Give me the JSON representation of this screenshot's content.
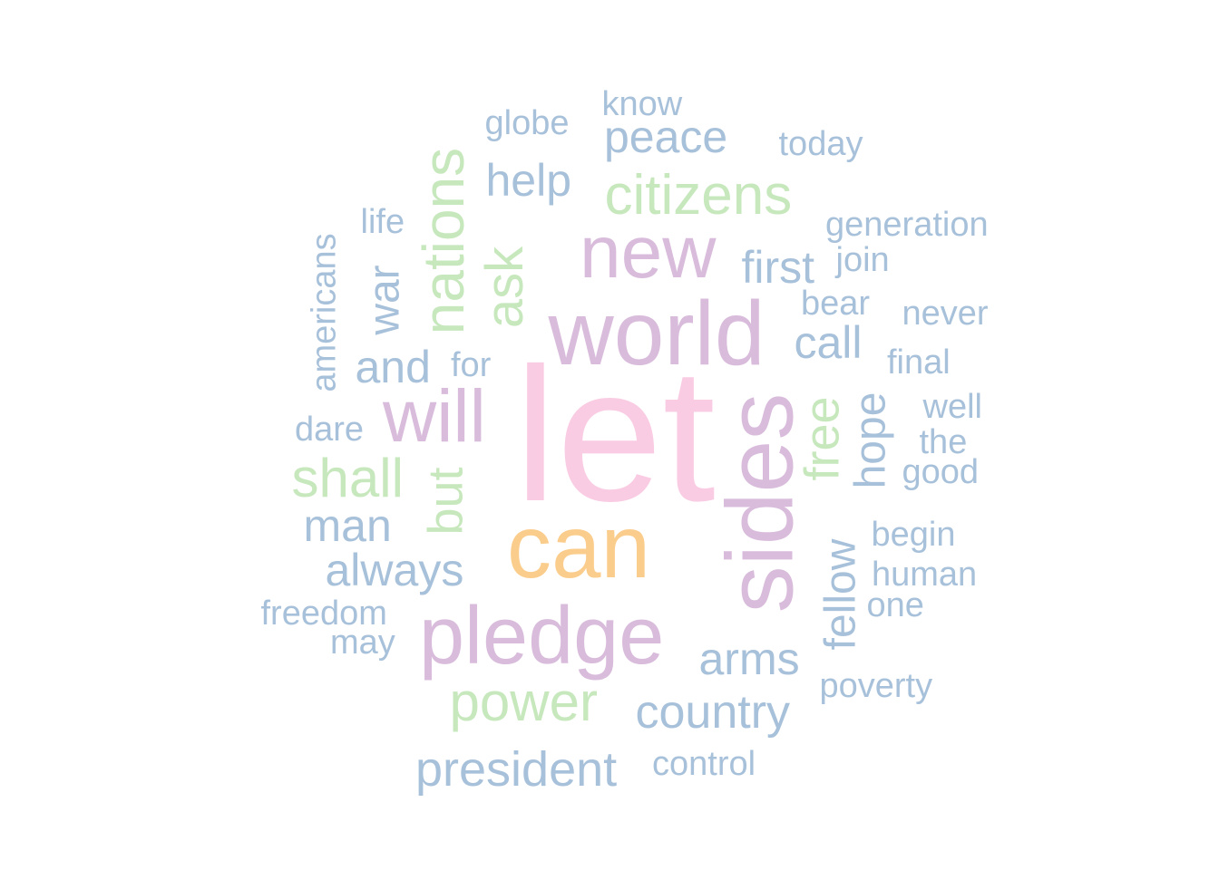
{
  "palette": {
    "blue": "#a8c1da",
    "pink": "#f9cce3",
    "purple": "#d9bcdc",
    "green": "#c7e8bd",
    "orange": "#fbcd8c"
  },
  "words": [
    {
      "text": "let",
      "frequency": 12,
      "color": "pink",
      "rotated": false
    },
    {
      "text": "world",
      "frequency": 8,
      "color": "purple",
      "rotated": false
    },
    {
      "text": "sides",
      "frequency": 8,
      "color": "purple",
      "rotated": true
    },
    {
      "text": "can",
      "frequency": 8,
      "color": "orange",
      "rotated": false
    },
    {
      "text": "pledge",
      "frequency": 7,
      "color": "purple",
      "rotated": false
    },
    {
      "text": "new",
      "frequency": 7,
      "color": "purple",
      "rotated": false
    },
    {
      "text": "will",
      "frequency": 7,
      "color": "purple",
      "rotated": false
    },
    {
      "text": "nations",
      "frequency": 5,
      "color": "green",
      "rotated": true
    },
    {
      "text": "citizens",
      "frequency": 5,
      "color": "green",
      "rotated": false
    },
    {
      "text": "power",
      "frequency": 5,
      "color": "green",
      "rotated": false
    },
    {
      "text": "shall",
      "frequency": 5,
      "color": "green",
      "rotated": false
    },
    {
      "text": "ask",
      "frequency": 5,
      "color": "green",
      "rotated": true
    },
    {
      "text": "free",
      "frequency": 5,
      "color": "green",
      "rotated": true
    },
    {
      "text": "but",
      "frequency": 5,
      "color": "green",
      "rotated": true
    },
    {
      "text": "president",
      "frequency": 4,
      "color": "blue",
      "rotated": false
    },
    {
      "text": "country",
      "frequency": 4,
      "color": "blue",
      "rotated": false
    },
    {
      "text": "always",
      "frequency": 4,
      "color": "blue",
      "rotated": false
    },
    {
      "text": "arms",
      "frequency": 4,
      "color": "blue",
      "rotated": false
    },
    {
      "text": "man",
      "frequency": 4,
      "color": "blue",
      "rotated": false
    },
    {
      "text": "peace",
      "frequency": 4,
      "color": "blue",
      "rotated": false
    },
    {
      "text": "help",
      "frequency": 4,
      "color": "blue",
      "rotated": false
    },
    {
      "text": "first",
      "frequency": 4,
      "color": "blue",
      "rotated": false
    },
    {
      "text": "call",
      "frequency": 4,
      "color": "blue",
      "rotated": false
    },
    {
      "text": "and",
      "frequency": 4,
      "color": "blue",
      "rotated": false
    },
    {
      "text": "war",
      "frequency": 4,
      "color": "blue",
      "rotated": true
    },
    {
      "text": "fellow",
      "frequency": 4,
      "color": "blue",
      "rotated": true
    },
    {
      "text": "hope",
      "frequency": 4,
      "color": "blue",
      "rotated": true
    },
    {
      "text": "globe",
      "frequency": 3,
      "color": "blue",
      "rotated": false
    },
    {
      "text": "know",
      "frequency": 3,
      "color": "blue",
      "rotated": false
    },
    {
      "text": "today",
      "frequency": 3,
      "color": "blue",
      "rotated": false
    },
    {
      "text": "generation",
      "frequency": 3,
      "color": "blue",
      "rotated": false
    },
    {
      "text": "life",
      "frequency": 3,
      "color": "blue",
      "rotated": false
    },
    {
      "text": "join",
      "frequency": 3,
      "color": "blue",
      "rotated": false
    },
    {
      "text": "bear",
      "frequency": 3,
      "color": "blue",
      "rotated": false
    },
    {
      "text": "never",
      "frequency": 3,
      "color": "blue",
      "rotated": false
    },
    {
      "text": "final",
      "frequency": 3,
      "color": "blue",
      "rotated": false
    },
    {
      "text": "for",
      "frequency": 3,
      "color": "blue",
      "rotated": false
    },
    {
      "text": "well",
      "frequency": 3,
      "color": "blue",
      "rotated": false
    },
    {
      "text": "dare",
      "frequency": 3,
      "color": "blue",
      "rotated": false
    },
    {
      "text": "the",
      "frequency": 3,
      "color": "blue",
      "rotated": false
    },
    {
      "text": "good",
      "frequency": 3,
      "color": "blue",
      "rotated": false
    },
    {
      "text": "begin",
      "frequency": 3,
      "color": "blue",
      "rotated": false
    },
    {
      "text": "human",
      "frequency": 3,
      "color": "blue",
      "rotated": false
    },
    {
      "text": "one",
      "frequency": 3,
      "color": "blue",
      "rotated": false
    },
    {
      "text": "freedom",
      "frequency": 3,
      "color": "blue",
      "rotated": false
    },
    {
      "text": "may",
      "frequency": 3,
      "color": "blue",
      "rotated": false
    },
    {
      "text": "poverty",
      "frequency": 3,
      "color": "blue",
      "rotated": false
    },
    {
      "text": "control",
      "frequency": 3,
      "color": "blue",
      "rotated": false
    },
    {
      "text": "americans",
      "frequency": 3,
      "color": "blue",
      "rotated": true
    }
  ]
}
